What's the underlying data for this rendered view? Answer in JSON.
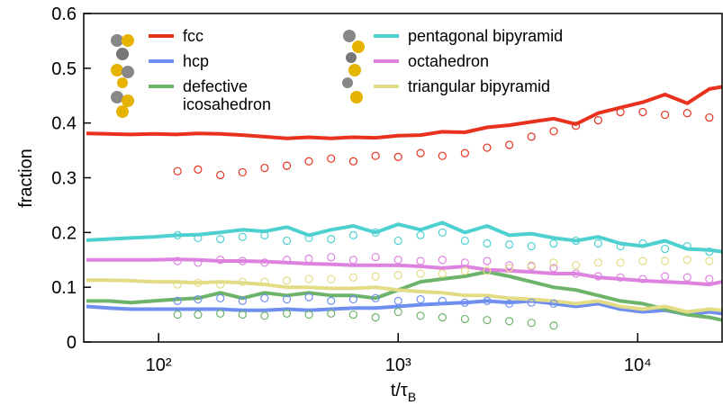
{
  "chart_data": {
    "type": "line",
    "y_label": "fraction",
    "x_label": "t/τ",
    "x_label_sub": "B",
    "xscale": "log",
    "xlim": [
      48.7,
      22700
    ],
    "ylim": [
      0,
      0.6
    ],
    "xticks": [
      {
        "value": 100,
        "label": "10²"
      },
      {
        "value": 1000,
        "label": "10³"
      },
      {
        "value": 10000,
        "label": "10⁴"
      }
    ],
    "yticks": [
      0,
      0.1,
      0.2,
      0.3,
      0.4,
      0.5,
      0.6
    ],
    "x": [
      50,
      62,
      77,
      95,
      118,
      146,
      181,
      224,
      277,
      343,
      424,
      525,
      650,
      805,
      1000,
      1240,
      1530,
      1900,
      2350,
      2910,
      3600,
      4460,
      5520,
      6840,
      8470,
      10500,
      13000,
      16100,
      19900,
      22500
    ],
    "x_points": [
      120,
      146,
      181,
      224,
      277,
      343,
      424,
      525,
      650,
      805,
      1000,
      1240,
      1530,
      1900,
      2350,
      2910,
      3600,
      4460,
      5520,
      6840,
      8470,
      10500,
      13000,
      16100,
      19900
    ],
    "series": [
      {
        "name": "fcc",
        "color": "#e8321e",
        "values": [
          0.381,
          0.38,
          0.379,
          0.38,
          0.379,
          0.381,
          0.38,
          0.378,
          0.375,
          0.372,
          0.374,
          0.372,
          0.374,
          0.373,
          0.377,
          0.378,
          0.384,
          0.383,
          0.392,
          0.396,
          0.402,
          0.408,
          0.398,
          0.418,
          0.428,
          0.438,
          0.452,
          0.436,
          0.462,
          0.466
        ],
        "point_values": [
          0.312,
          0.315,
          0.305,
          0.31,
          0.318,
          0.322,
          0.33,
          0.335,
          0.33,
          0.34,
          0.338,
          0.345,
          0.34,
          0.345,
          0.355,
          0.36,
          0.375,
          0.385,
          0.395,
          0.405,
          0.42,
          0.42,
          0.415,
          0.418,
          0.41
        ]
      },
      {
        "name": "hcp",
        "color": "#6f8ff0",
        "values": [
          0.065,
          0.062,
          0.06,
          0.06,
          0.06,
          0.06,
          0.06,
          0.058,
          0.058,
          0.06,
          0.058,
          0.06,
          0.062,
          0.062,
          0.065,
          0.068,
          0.07,
          0.072,
          0.075,
          0.072,
          0.075,
          0.07,
          0.065,
          0.07,
          0.06,
          0.055,
          0.058,
          0.05,
          0.055,
          0.052
        ],
        "point_values": [
          0.075,
          0.078,
          0.08,
          0.075,
          0.08,
          0.078,
          0.082,
          0.075,
          0.078,
          0.08,
          0.075,
          0.078,
          0.075,
          0.072,
          0.075,
          0.07,
          0.072,
          0.07,
          null,
          null,
          null,
          null,
          null,
          null,
          null
        ]
      },
      {
        "name": "defective icosahedron",
        "color": "#6db36a",
        "values": [
          0.075,
          0.075,
          0.072,
          0.075,
          0.078,
          0.08,
          0.09,
          0.08,
          0.09,
          0.085,
          0.09,
          0.085,
          0.085,
          0.08,
          0.095,
          0.11,
          0.115,
          0.12,
          0.128,
          0.12,
          0.11,
          0.1,
          0.095,
          0.085,
          0.075,
          0.07,
          0.06,
          0.05,
          0.045,
          0.04
        ],
        "point_values": [
          0.05,
          0.05,
          0.052,
          0.05,
          0.048,
          0.052,
          0.05,
          0.052,
          0.05,
          0.045,
          0.055,
          0.048,
          0.045,
          0.042,
          0.04,
          0.038,
          0.035,
          0.03,
          null,
          null,
          null,
          null,
          null,
          null,
          null
        ]
      },
      {
        "name": "pentagonal bipyramid",
        "color": "#4fd0d0",
        "values": [
          0.186,
          0.188,
          0.19,
          0.192,
          0.195,
          0.196,
          0.2,
          0.205,
          0.202,
          0.21,
          0.195,
          0.205,
          0.212,
          0.2,
          0.215,
          0.205,
          0.218,
          0.2,
          0.212,
          0.195,
          0.198,
          0.19,
          0.185,
          0.192,
          0.18,
          0.175,
          0.185,
          0.17,
          0.168,
          0.165
        ],
        "point_values": [
          0.195,
          0.19,
          0.188,
          0.192,
          0.195,
          0.185,
          0.19,
          0.188,
          0.195,
          0.2,
          0.185,
          0.195,
          0.2,
          0.185,
          0.18,
          0.178,
          0.175,
          0.18,
          0.185,
          0.18,
          0.175,
          0.18,
          0.17,
          0.175,
          0.165
        ]
      },
      {
        "name": "octahedron",
        "color": "#de82e0",
        "values": [
          0.15,
          0.15,
          0.15,
          0.15,
          0.151,
          0.15,
          0.148,
          0.148,
          0.147,
          0.145,
          0.143,
          0.142,
          0.14,
          0.14,
          0.14,
          0.138,
          0.135,
          0.138,
          0.132,
          0.13,
          0.128,
          0.125,
          0.125,
          0.118,
          0.115,
          0.112,
          0.11,
          0.108,
          0.105,
          0.11
        ],
        "point_values": [
          0.148,
          0.145,
          0.15,
          0.148,
          0.145,
          0.15,
          0.152,
          0.155,
          0.15,
          0.155,
          0.15,
          0.148,
          0.15,
          0.145,
          0.148,
          0.14,
          0.138,
          0.135,
          0.125,
          0.12,
          0.118,
          0.115,
          0.12,
          0.118,
          0.115
        ]
      },
      {
        "name": "triangular bipyramid",
        "color": "#e2dc86",
        "values": [
          0.113,
          0.113,
          0.112,
          0.11,
          0.11,
          0.108,
          0.11,
          0.108,
          0.105,
          0.1,
          0.1,
          0.098,
          0.098,
          0.1,
          0.095,
          0.092,
          0.09,
          0.085,
          0.085,
          0.08,
          0.078,
          0.075,
          0.07,
          0.075,
          0.065,
          0.06,
          0.065,
          0.055,
          0.06,
          0.058
        ],
        "point_values": [
          0.105,
          0.108,
          0.105,
          0.11,
          0.11,
          0.112,
          0.115,
          0.115,
          0.118,
          0.12,
          0.122,
          0.125,
          0.125,
          0.13,
          0.13,
          0.135,
          0.14,
          0.145,
          0.14,
          0.145,
          0.145,
          0.148,
          0.148,
          0.15,
          0.148
        ]
      }
    ]
  }
}
